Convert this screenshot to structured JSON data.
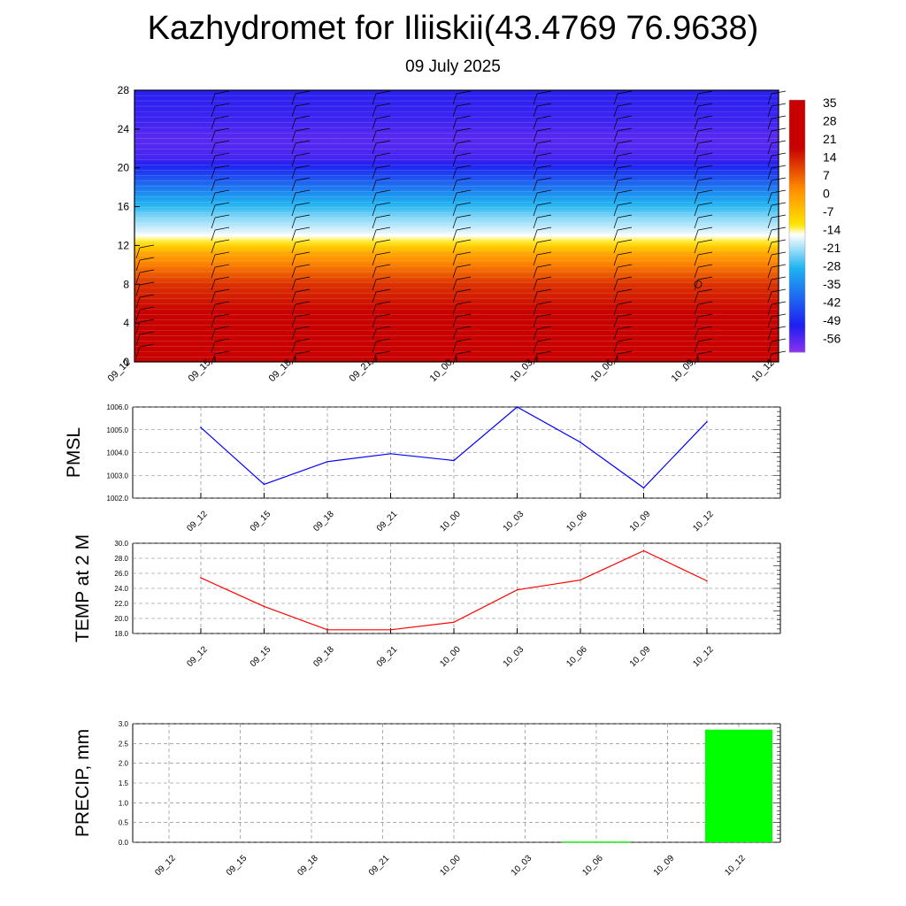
{
  "header": {
    "title": "Kazhydromet for Iliiskii(43.4769 76.9638)",
    "date": "09 July 2025"
  },
  "chart_data": [
    {
      "type": "heatmap",
      "ylim": [
        0,
        28
      ],
      "yticks": [
        "0",
        "4",
        "8",
        "12",
        "16",
        "20",
        "24",
        "28"
      ],
      "x": [
        "09_12",
        "09_15",
        "09_18",
        "09_21",
        "10_00",
        "10_03",
        "10_06",
        "10_09",
        "10_12"
      ],
      "colorbar_ticks": [
        "35",
        "28",
        "21",
        "14",
        "7",
        "0",
        "-7",
        "-14",
        "-21",
        "-28",
        "-35",
        "-42",
        "-49",
        "-56"
      ],
      "colorbar_range": [
        -63,
        42
      ],
      "level_temperature_profile": [
        {
          "level": 0,
          "value": 30
        },
        {
          "level": 4,
          "value": 24
        },
        {
          "level": 8,
          "value": 16
        },
        {
          "level": 11,
          "value": 2
        },
        {
          "level": 12.6,
          "value": -12
        },
        {
          "level": 13.4,
          "value": -16
        },
        {
          "level": 15,
          "value": -22
        },
        {
          "level": 17,
          "value": -32
        },
        {
          "level": 19,
          "value": -44
        },
        {
          "level": 21,
          "value": -56
        },
        {
          "level": 23,
          "value": -58
        },
        {
          "level": 25,
          "value": -55
        },
        {
          "level": 28,
          "value": -53
        }
      ],
      "colors": {
        "hot": "#c80000",
        "orange": "#ff8c00",
        "yellow": "#ffe600",
        "white": "#ffffff",
        "cyan": "#1eb4f0",
        "blue": "#1e1ef0",
        "purple": "#8c32f0"
      }
    },
    {
      "type": "line",
      "ylabel": "PMSL",
      "ylim": [
        1002.0,
        1006.0
      ],
      "yticks": [
        "1002.0",
        "1003.0",
        "1004.0",
        "1005.0",
        "1006.0"
      ],
      "x": [
        "09_12",
        "09_15",
        "09_18",
        "09_21",
        "10_00",
        "10_03",
        "10_06",
        "10_09",
        "10_12"
      ],
      "values": [
        1005.1,
        1002.6,
        1003.6,
        1003.95,
        1003.65,
        1006.0,
        1004.45,
        1002.45,
        1005.35
      ],
      "color": "#0000ff"
    },
    {
      "type": "line",
      "ylabel": "TEMP at 2 M",
      "ylim": [
        18.0,
        30.0
      ],
      "yticks": [
        "18.0",
        "20.0",
        "22.0",
        "24.0",
        "26.0",
        "28.0",
        "30.0"
      ],
      "x": [
        "09_12",
        "09_15",
        "09_18",
        "09_21",
        "10_00",
        "10_03",
        "10_06",
        "10_09",
        "10_12"
      ],
      "values": [
        25.4,
        21.6,
        18.5,
        18.5,
        19.5,
        23.8,
        25.1,
        29.0,
        25.0
      ],
      "color": "#ff0000"
    },
    {
      "type": "bar",
      "ylabel": "PRECIP, mm",
      "ylim": [
        0.0,
        3.0
      ],
      "yticks": [
        "0.0",
        "0.5",
        "1.0",
        "1.5",
        "2.0",
        "2.5",
        "3.0"
      ],
      "categories": [
        "09_12",
        "09_15",
        "09_18",
        "09_21",
        "10_00",
        "10_03",
        "10_06",
        "10_09",
        "10_12"
      ],
      "values": [
        0,
        0,
        0,
        0,
        0,
        0,
        0.02,
        0,
        2.85
      ],
      "color": "#00ff00"
    }
  ]
}
